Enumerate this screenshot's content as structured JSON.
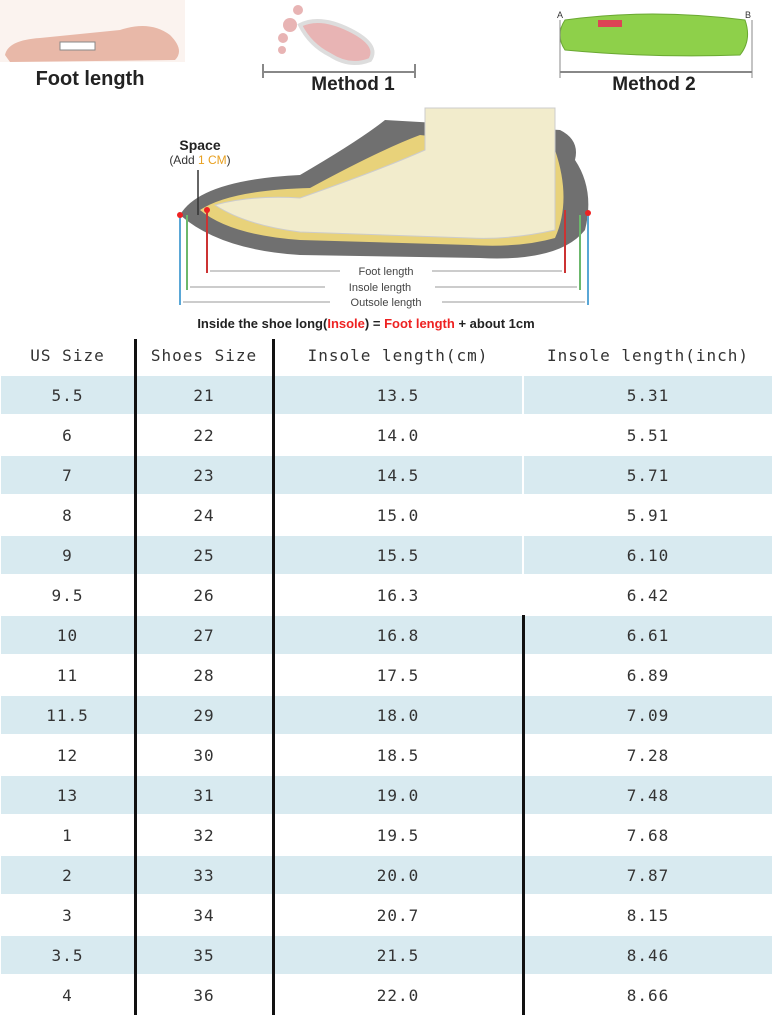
{
  "methods": {
    "foot_length": "Foot length",
    "method_1": "Method 1",
    "method_2": "Method 2",
    "point_a": "A",
    "point_b": "B"
  },
  "diagram": {
    "space": "Space",
    "add_prefix": "(Add ",
    "add_value": "1 CM",
    "add_suffix": ")",
    "foot_length": "Foot length",
    "insole_length": "Insole length",
    "outsole_length": "Outsole length",
    "caption": [
      "Inside the shoe long(",
      "Insole",
      ") = ",
      "Foot length",
      " + about ",
      "1cm"
    ]
  },
  "table": {
    "headers": [
      "US Size",
      "Shoes Size",
      "Insole length(cm)",
      "Insole length(inch)"
    ],
    "rows": [
      [
        "5.5",
        "21",
        "13.5",
        "5.31"
      ],
      [
        "6",
        "22",
        "14.0",
        "5.51"
      ],
      [
        "7",
        "23",
        "14.5",
        "5.71"
      ],
      [
        "8",
        "24",
        "15.0",
        "5.91"
      ],
      [
        "9",
        "25",
        "15.5",
        "6.10"
      ],
      [
        "9.5",
        "26",
        "16.3",
        "6.42"
      ],
      [
        "10",
        "27",
        "16.8",
        "6.61"
      ],
      [
        "11",
        "28",
        "17.5",
        "6.89"
      ],
      [
        "11.5",
        "29",
        "18.0",
        "7.09"
      ],
      [
        "12",
        "30",
        "18.5",
        "7.28"
      ],
      [
        "13",
        "31",
        "19.0",
        "7.48"
      ],
      [
        "1",
        "32",
        "19.5",
        "7.68"
      ],
      [
        "2",
        "33",
        "20.0",
        "7.87"
      ],
      [
        "3",
        "34",
        "20.7",
        "8.15"
      ],
      [
        "3.5",
        "35",
        "21.5",
        "8.46"
      ],
      [
        "4",
        "36",
        "22.0",
        "8.66"
      ]
    ]
  }
}
